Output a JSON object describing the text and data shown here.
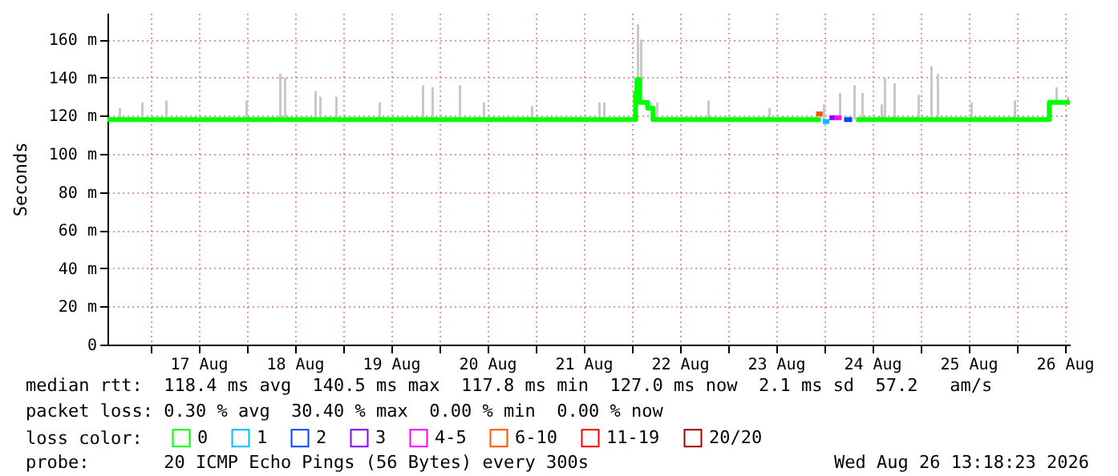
{
  "chart_data": {
    "type": "line",
    "ylabel": "Seconds",
    "legend_title": "loss color:",
    "legend": "bottom",
    "grid": true,
    "xlim": [
      "2026-08-16T13:18",
      "2026-08-26T13:18"
    ],
    "xticks": [
      {
        "value": "2026-08-17T00:00",
        "label": null
      },
      {
        "value": "2026-08-17T12:00",
        "label": "17 Aug"
      },
      {
        "value": "2026-08-18T00:00",
        "label": null
      },
      {
        "value": "2026-08-18T12:00",
        "label": "18 Aug"
      },
      {
        "value": "2026-08-19T00:00",
        "label": null
      },
      {
        "value": "2026-08-19T12:00",
        "label": "19 Aug"
      },
      {
        "value": "2026-08-20T00:00",
        "label": null
      },
      {
        "value": "2026-08-20T12:00",
        "label": "20 Aug"
      },
      {
        "value": "2026-08-21T00:00",
        "label": null
      },
      {
        "value": "2026-08-21T12:00",
        "label": "21 Aug"
      },
      {
        "value": "2026-08-22T00:00",
        "label": null
      },
      {
        "value": "2026-08-22T12:00",
        "label": "22 Aug"
      },
      {
        "value": "2026-08-23T00:00",
        "label": null
      },
      {
        "value": "2026-08-23T12:00",
        "label": "23 Aug"
      },
      {
        "value": "2026-08-24T00:00",
        "label": null
      },
      {
        "value": "2026-08-24T12:00",
        "label": "24 Aug"
      },
      {
        "value": "2026-08-25T00:00",
        "label": null
      },
      {
        "value": "2026-08-25T12:00",
        "label": "25 Aug"
      },
      {
        "value": "2026-08-26T00:00",
        "label": null
      },
      {
        "value": "2026-08-26T12:00",
        "label": "26 Aug"
      }
    ],
    "ylim": [
      0,
      174
    ],
    "yticks": [
      0,
      {
        "value": 20,
        "label": "20 m"
      },
      {
        "value": 40,
        "label": "40 m"
      },
      {
        "value": 60,
        "label": "60 m"
      },
      {
        "value": 80,
        "label": "80 m"
      },
      {
        "value": 100,
        "label": "100 m"
      },
      {
        "value": 120,
        "label": "120 m"
      },
      {
        "value": 140,
        "label": "140 m"
      },
      {
        "value": 160,
        "label": "160 m"
      }
    ],
    "series": [
      {
        "type": "bar",
        "color": "#c8c8c8",
        "x": [
          "2026-08-16T16:24",
          "2026-08-16T22:00",
          "2026-08-17T04:00",
          "2026-08-18T00:00",
          "2026-08-18T08:24",
          "2026-08-18T09:36",
          "2026-08-18T17:12",
          "2026-08-18T18:24",
          "2026-08-18T22:24",
          "2026-08-19T09:12",
          "2026-08-19T20:00",
          "2026-08-19T22:24",
          "2026-08-20T05:12",
          "2026-08-20T11:12",
          "2026-08-20T23:12",
          "2026-08-21T16:00",
          "2026-08-21T17:12",
          "2026-08-22T01:36",
          "2026-08-22T02:24",
          "2026-08-22T06:24",
          "2026-08-22T19:12",
          "2026-08-23T10:24",
          "2026-08-24T00:00",
          "2026-08-24T04:00",
          "2026-08-24T07:36",
          "2026-08-24T09:36",
          "2026-08-24T14:24",
          "2026-08-24T15:12",
          "2026-08-24T17:36",
          "2026-08-24T23:36",
          "2026-08-25T02:48",
          "2026-08-25T04:24",
          "2026-08-25T12:48",
          "2026-08-25T23:36",
          "2026-08-26T10:00",
          "2026-08-26T12:48"
        ],
        "base": [
          118,
          118,
          118,
          118,
          118,
          118,
          118,
          118,
          118,
          118,
          118,
          118,
          118,
          118,
          118,
          118,
          118,
          139,
          127,
          118,
          118,
          118,
          118,
          118,
          118,
          118,
          118,
          118,
          118,
          118,
          118,
          118,
          118,
          118,
          127,
          127
        ],
        "values": [
          6,
          9,
          10,
          10,
          24,
          22,
          15,
          12,
          12,
          9,
          18,
          17,
          18,
          9,
          7,
          9,
          9,
          29,
          33,
          9,
          10,
          6,
          8,
          14,
          18,
          14,
          8,
          22,
          19,
          13,
          28,
          24,
          9,
          10,
          8,
          3
        ]
      },
      {
        "name": "0",
        "color": "#00ff00",
        "x": [
          "2026-08-16T13:18",
          "2026-08-22T00:50",
          "2026-08-22T01:00",
          "2026-08-22T01:20",
          "2026-08-22T02:00",
          "2026-08-22T04:00",
          "2026-08-22T05:10",
          "2026-08-22T05:20",
          "2026-08-23T23:10",
          "2026-08-24T00:00",
          "2026-08-24T08:00",
          "2026-08-26T08:00",
          "2026-08-26T08:10",
          "2026-08-26T13:18"
        ],
        "values": [
          118,
          118,
          132,
          139,
          127,
          124,
          124,
          118,
          118,
          null,
          118,
          118,
          127,
          127
        ]
      },
      {
        "name": "1",
        "color": "#00bbff",
        "x": [
          "2026-08-23T23:40",
          "2026-08-24T01:20"
        ],
        "values": [
          117,
          117
        ]
      },
      {
        "name": "2",
        "color": "#0044ff",
        "x": [
          "2026-08-24T05:00",
          "2026-08-24T07:00"
        ],
        "values": [
          118,
          118
        ]
      },
      {
        "name": "3",
        "color": "#8800ff",
        "x": [
          "2026-08-24T01:20",
          "2026-08-24T02:40"
        ],
        "values": [
          119,
          119
        ]
      },
      {
        "name": "4-5",
        "color": "#ff00ff",
        "x": [
          "2026-08-24T02:40",
          "2026-08-24T04:20"
        ],
        "values": [
          119,
          119
        ]
      },
      {
        "name": "6-10",
        "color": "#ff5500",
        "x": [
          "2026-08-23T22:00",
          "2026-08-23T23:40"
        ],
        "values": [
          121,
          121
        ]
      },
      {
        "name": "11-19",
        "color": "#ff0000"
      },
      {
        "name": "20/20",
        "color": "#a10000"
      }
    ],
    "annotations": [
      "median rtt:  118.4 ms avg  140.5 ms max  117.8 ms min  127.0 ms now  2.1 ms sd  57.2   am/s",
      "packet loss: 0.30 % avg  30.40 % max  0.00 % min  0.00 % now",
      "probe:       20 ICMP Echo Pings (56 Bytes) every 300s",
      "Wed Aug 26 13:18:23 2026"
    ]
  }
}
